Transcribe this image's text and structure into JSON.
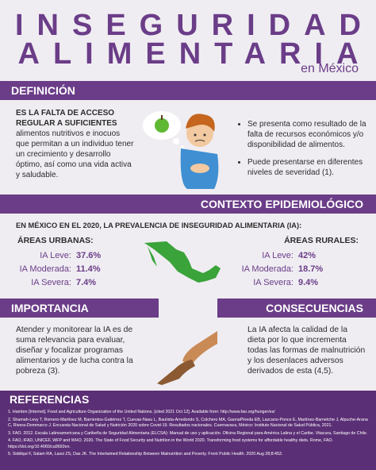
{
  "header": {
    "title_line1": "INSEGURIDAD",
    "title_line2": "ALIMENTARIA",
    "subtitle": "en México"
  },
  "definicion": {
    "heading": "DEFINICIÓN",
    "bold": "ES LA FALTA DE ACCESO REGULAR A SUFICIENTES",
    "text": "alimentos nutritivos e inocuos que permitan a un individuo tener un crecimiento y desarrollo óptimo, así como una vida activa y saludable.",
    "bullets": [
      "Se presenta como resultado de la falta de recursos económicos y/o disponibilidad de alimentos.",
      "Puede presentarse en diferentes niveles de severidad (1)."
    ]
  },
  "contexto": {
    "heading": "CONTEXTO EPIDEMIOLÓGICO",
    "intro": "EN MÉXICO EN EL 2020, LA PREVALENCIA DE INSEGURIDAD ALIMENTARIA (IA):",
    "urbanas": {
      "heading": "ÁREAS URBANAS:",
      "rows": [
        {
          "label": "IA Leve:",
          "value": "37.6%"
        },
        {
          "label": "IA Moderada:",
          "value": "11.4%"
        },
        {
          "label": "IA Severa:",
          "value": "7.4%"
        }
      ]
    },
    "rurales": {
      "heading": "ÁREAS RURALES:",
      "rows": [
        {
          "label": "IA Leve:",
          "value": "42%"
        },
        {
          "label": "IA Moderada:",
          "value": "18.7%"
        },
        {
          "label": "IA Severa:",
          "value": "9.4%"
        }
      ]
    }
  },
  "importancia": {
    "heading": "IMPORTANCIA",
    "text": "Atender y monitorear la IA es de suma relevancia para evaluar, diseñar y focalizar programas alimentarios y de lucha contra la pobreza (3)."
  },
  "consecuencias": {
    "heading": "CONSECUENCIAS",
    "text": "La IA afecta la calidad de la dieta por lo que incrementa todas las formas de malnutrición y los desenlaces adversos derivados de esta (4,5)."
  },
  "referencias": {
    "heading": "REFERENCIAS",
    "items": [
      "1. Hambre [Internet]. Food and Agriculture Organization of the United Nations. [cited 2021 Oct 12]. Available from: http://www.fao.org/hunger/es/",
      "2. Shamah-Levy T, Romero-Martínez M, Barrientos-Gutiérrez T, Cuevas-Nasu L, Bautista-Arredondo S, Colchero MA, GaonaPineda EB, Lazcano-Ponce E, Martínez-Barnetche J, Alpuche-Arana C, Rivera-Dommarco J. Encuesta Nacional de Salud y Nutrición 2020 sobre Covid-19. Resultados nacionales. Cuernavaca, México: Instituto Nacional de Salud Pública, 2021.",
      "3. FAO. 2012. Escala Latinoamericana y Caribeña de Seguridad Alimentaria (ELCSA): Manual de uso y aplicación. Oficina Regional para América Latina y el Caribe. Vitacura, Santiago de Chile.",
      "4. FAO, IFAD, UNICEF, WFP and WHO. 2020. The State of Food Security and Nutrition in the World 2020. Transforming food systems for affordable healthy diets. Rome, FAO. https://doi.org/10.4060/ca9692en.",
      "5. Siddiqui F, Salam RA, Lassi ZS, Das JK. The Intertwined Relationship Between Malnutrition and Poverty. Front Public Health. 2020 Aug 28;8:453."
    ]
  }
}
